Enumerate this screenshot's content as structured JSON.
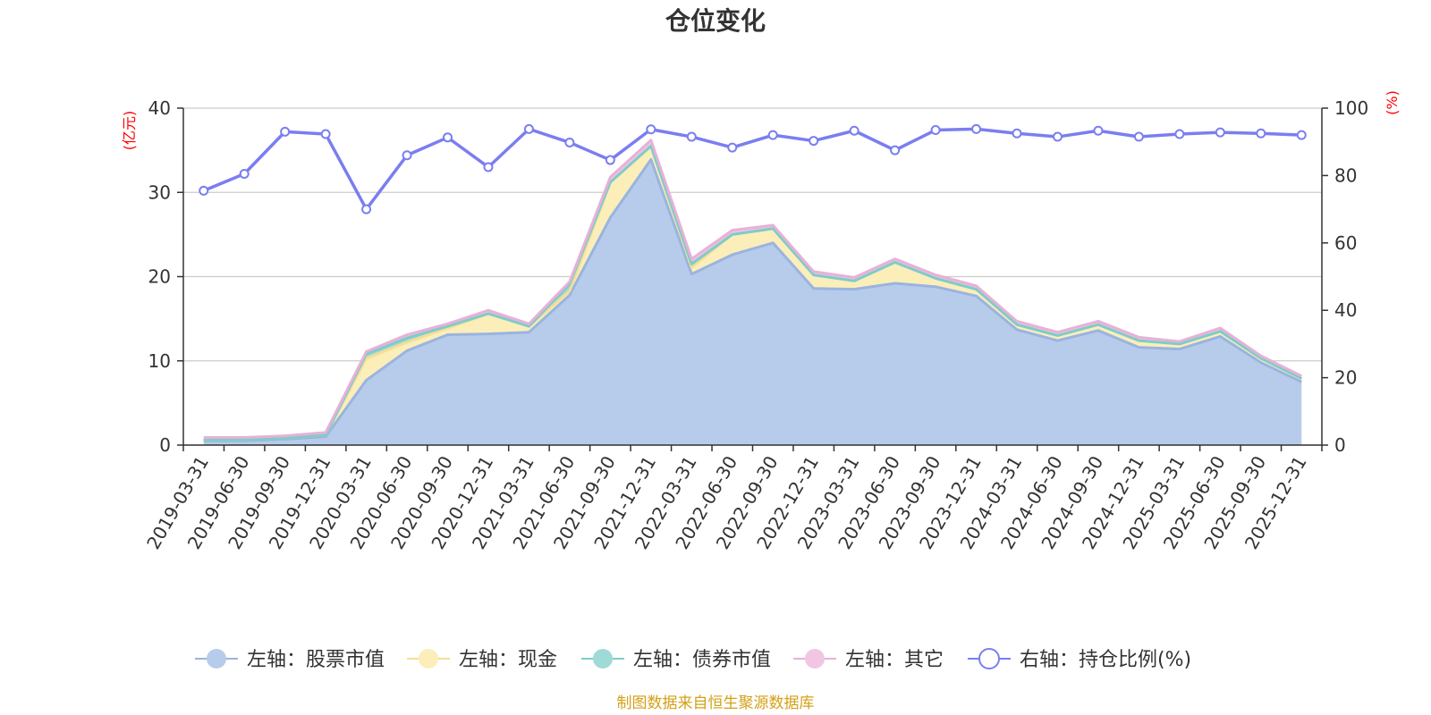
{
  "chart_data": {
    "type": "area",
    "title": "仓位变化",
    "left_axis_unit": "(亿元)",
    "right_axis_unit": "(%)",
    "ylim_left": [
      0,
      40
    ],
    "yticks_left": [
      0,
      10,
      20,
      30,
      40
    ],
    "ylim_right": [
      0,
      100
    ],
    "yticks_right": [
      0,
      20,
      40,
      60,
      80,
      100
    ],
    "grid": true,
    "legend_position": "bottom",
    "categories": [
      "2019-03-31",
      "2019-06-30",
      "2019-09-30",
      "2019-12-31",
      "2020-03-31",
      "2020-06-30",
      "2020-09-30",
      "2020-12-31",
      "2021-03-31",
      "2021-06-30",
      "2021-09-30",
      "2021-12-31",
      "2022-03-31",
      "2022-06-30",
      "2022-09-30",
      "2022-12-31",
      "2023-03-31",
      "2023-06-30",
      "2023-09-30",
      "2023-12-31",
      "2024-03-31",
      "2024-06-30",
      "2024-09-30",
      "2024-12-31",
      "2025-03-31",
      "2025-06-30",
      "2025-09-30",
      "2025-12-31"
    ],
    "series": [
      {
        "name": "左轴：股票市值",
        "axis": "left",
        "color": "#9ab4e0",
        "fill": "#b7cceb",
        "values": [
          0.5,
          0.5,
          0.7,
          1.0,
          7.7,
          11.2,
          13.1,
          13.2,
          13.4,
          17.8,
          27.0,
          33.9,
          20.3,
          22.6,
          24.0,
          18.6,
          18.5,
          19.2,
          18.8,
          17.7,
          13.7,
          12.4,
          13.6,
          11.6,
          11.4,
          12.9,
          9.8,
          7.5
        ]
      },
      {
        "name": "左轴：现金",
        "axis": "left",
        "color": "#f3de95",
        "fill": "#fbeeb9",
        "values": [
          0.1,
          0.1,
          0.1,
          0.2,
          2.6,
          1.0,
          0.8,
          2.4,
          0.7,
          0.5,
          4.2,
          1.6,
          0.8,
          2.4,
          1.7,
          1.6,
          1.0,
          2.5,
          1.0,
          0.8,
          0.6,
          0.6,
          0.7,
          0.8,
          0.6,
          0.6,
          0.5,
          0.4
        ]
      },
      {
        "name": "左轴：债券市值",
        "axis": "left",
        "color": "#7ecccb",
        "fill": "#9fdad6",
        "values": [
          0.0,
          0.0,
          0.0,
          0.0,
          0.5,
          0.5,
          0.2,
          0.0,
          0.0,
          0.8,
          0.0,
          0.0,
          0.4,
          0.0,
          0.0,
          0.0,
          0.0,
          0.0,
          0.0,
          0.0,
          0.0,
          0.0,
          0.0,
          0.0,
          0.0,
          0.0,
          0.0,
          0.0
        ]
      },
      {
        "name": "左轴：其它",
        "axis": "left",
        "color": "#e7b1d8",
        "fill": "#f0c6e3",
        "values": [
          0.3,
          0.3,
          0.3,
          0.3,
          0.3,
          0.4,
          0.3,
          0.4,
          0.3,
          0.3,
          0.6,
          0.7,
          0.6,
          0.5,
          0.4,
          0.4,
          0.4,
          0.4,
          0.4,
          0.4,
          0.4,
          0.4,
          0.4,
          0.4,
          0.3,
          0.4,
          0.3,
          0.3
        ]
      },
      {
        "name": "右轴：持仓比例(%)",
        "axis": "right",
        "color": "#7a7ef0",
        "values": [
          75.5,
          80.5,
          93,
          92.3,
          70,
          86,
          91.3,
          82.5,
          93.8,
          89.8,
          84.6,
          93.7,
          91.5,
          88.3,
          92,
          90.3,
          93.3,
          87.5,
          93.5,
          93.8,
          92.5,
          91.5,
          93.3,
          91.5,
          92.3,
          92.8,
          92.5,
          92.0
        ]
      }
    ],
    "source_note": "制图数据来自恒生聚源数据库"
  }
}
